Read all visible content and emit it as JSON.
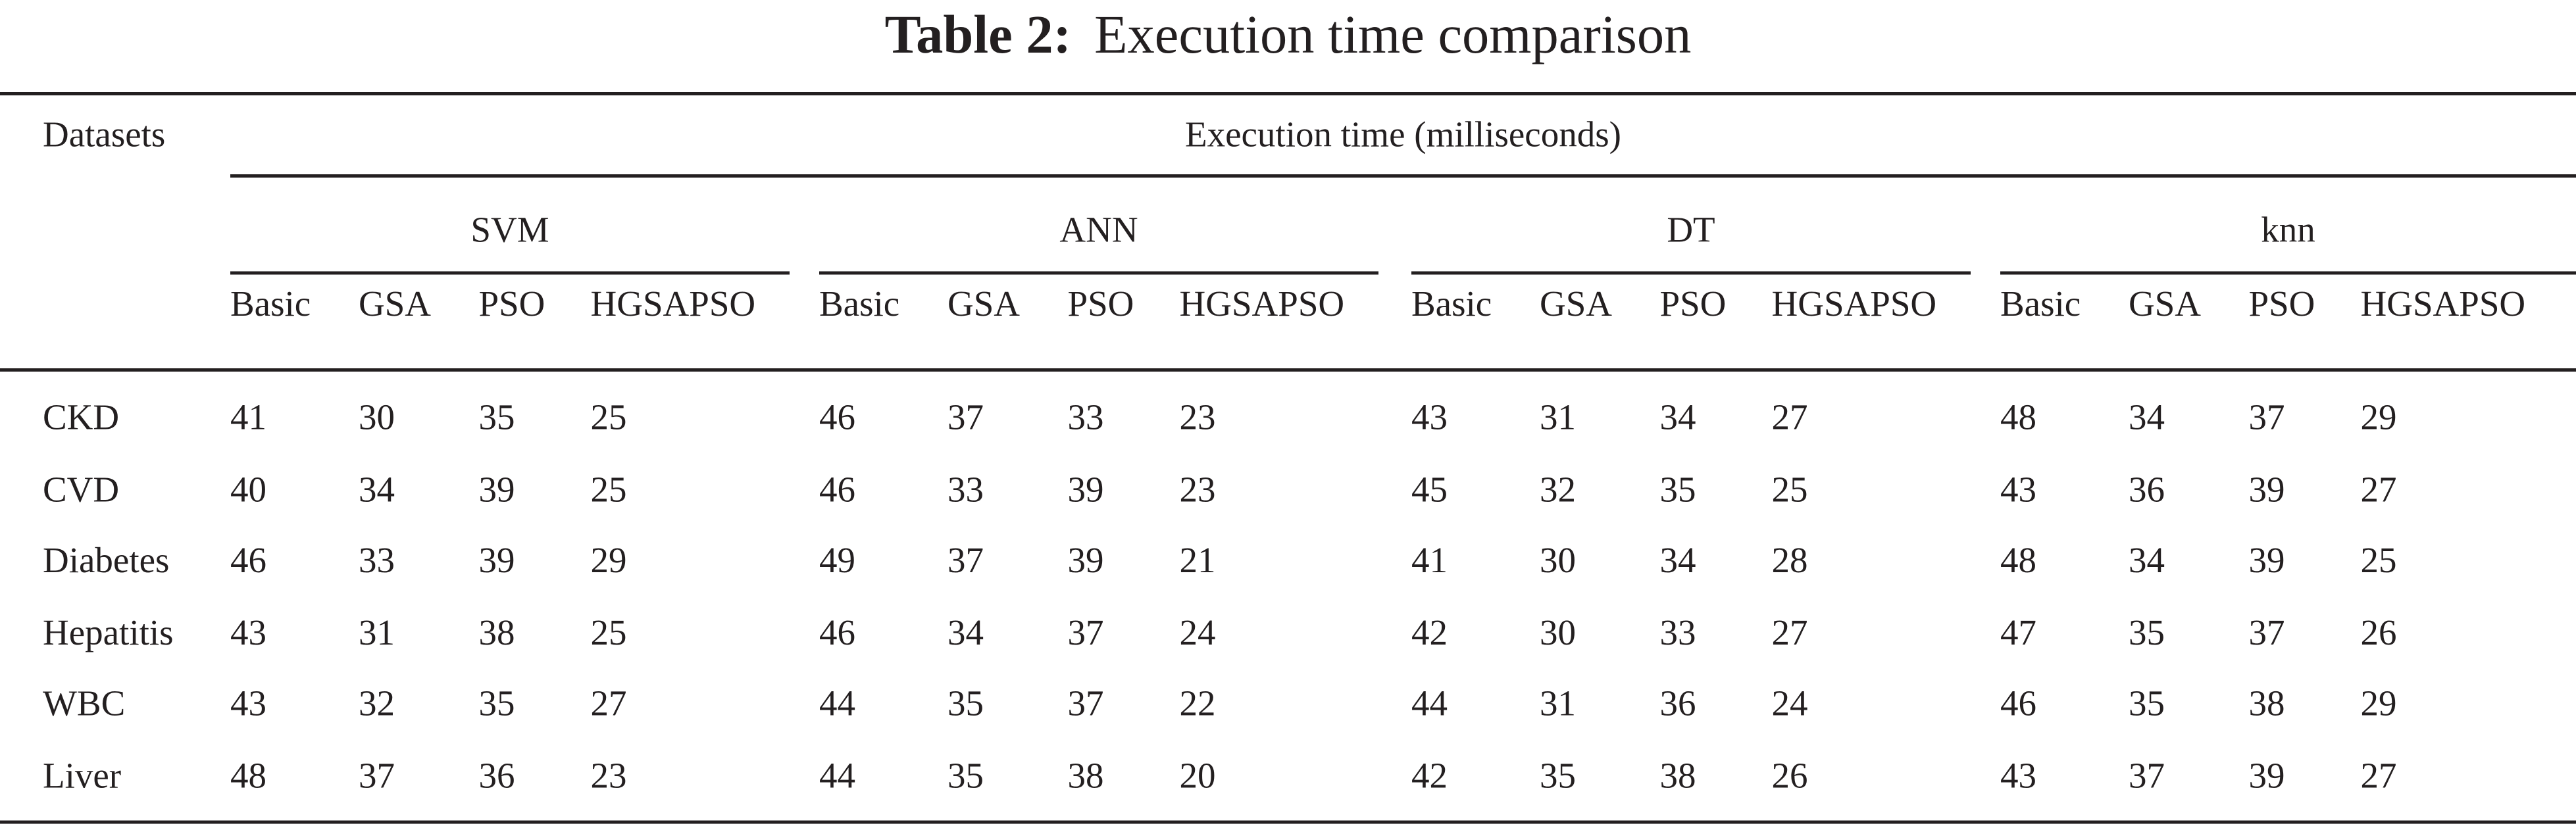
{
  "caption": {
    "label": "Table 2:",
    "text": "Execution time comparison"
  },
  "table": {
    "row_header": "Datasets",
    "spanning_header": "Execution time (milliseconds)",
    "groups": [
      {
        "name": "SVM",
        "columns": [
          "Basic",
          "GSA",
          "PSO",
          "HGSAPSO"
        ]
      },
      {
        "name": "ANN",
        "columns": [
          "Basic",
          "GSA",
          "PSO",
          "HGSAPSO"
        ]
      },
      {
        "name": "DT",
        "columns": [
          "Basic",
          "GSA",
          "PSO",
          "HGSAPSO"
        ]
      },
      {
        "name": "knn",
        "columns": [
          "Basic",
          "GSA",
          "PSO",
          "HGSAPSO"
        ]
      }
    ],
    "rows": [
      {
        "dataset": "CKD",
        "values": [
          "41",
          "30",
          "35",
          "25",
          "46",
          "37",
          "33",
          "23",
          "43",
          "31",
          "34",
          "27",
          "48",
          "34",
          "37",
          "29"
        ]
      },
      {
        "dataset": "CVD",
        "values": [
          "40",
          "34",
          "39",
          "25",
          "46",
          "33",
          "39",
          "23",
          "45",
          "32",
          "35",
          "25",
          "43",
          "36",
          "39",
          "27"
        ]
      },
      {
        "dataset": "Diabetes",
        "values": [
          "46",
          "33",
          "39",
          "29",
          "49",
          "37",
          "39",
          "21",
          "41",
          "30",
          "34",
          "28",
          "48",
          "34",
          "39",
          "25"
        ]
      },
      {
        "dataset": "Hepatitis",
        "values": [
          "43",
          "31",
          "38",
          "25",
          "46",
          "34",
          "37",
          "24",
          "42",
          "30",
          "33",
          "27",
          "47",
          "35",
          "37",
          "26"
        ]
      },
      {
        "dataset": "WBC",
        "values": [
          "43",
          "32",
          "35",
          "27",
          "44",
          "35",
          "37",
          "22",
          "44",
          "31",
          "36",
          "24",
          "46",
          "35",
          "38",
          "29"
        ]
      },
      {
        "dataset": "Liver",
        "values": [
          "48",
          "37",
          "36",
          "23",
          "44",
          "35",
          "38",
          "20",
          "42",
          "35",
          "38",
          "26",
          "43",
          "37",
          "39",
          "27"
        ]
      }
    ]
  }
}
